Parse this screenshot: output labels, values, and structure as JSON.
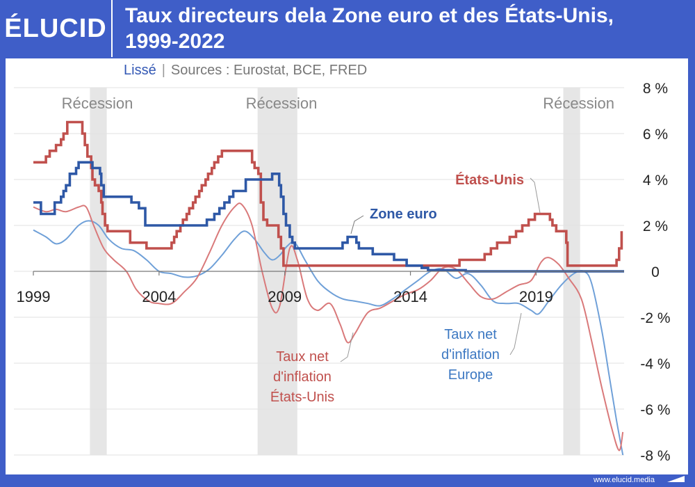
{
  "header": {
    "logo": "ÉLUCID",
    "title_line1": "Taux directeurs dela Zone euro et des États-Unis,",
    "title_line2": "1999-2022"
  },
  "subtitle": {
    "smoothed": "Lissé",
    "sources": "Sources : Eurostat, BCE, FRED"
  },
  "footer": {
    "url": "www.elucid.media"
  },
  "colors": {
    "frame": "#3f5ec8",
    "euro": "#2e58a6",
    "us": "#c0504d",
    "euro_net": "#6fa0d8",
    "us_net": "#d9797a",
    "recession": "#e6e6e6"
  },
  "chart_data": {
    "type": "line",
    "xlim": [
      1999,
      2022.5
    ],
    "ylim": [
      -8,
      8
    ],
    "x_ticks": [
      1999,
      2004,
      2009,
      2014,
      2019
    ],
    "y_ticks": [
      8,
      6,
      4,
      2,
      0,
      -2,
      -4,
      -6,
      -8
    ],
    "y_tick_labels": [
      "8 %",
      "6 %",
      "4 %",
      "2 %",
      "0",
      "-2 %",
      "-4 %",
      "-6 %",
      "-8 %"
    ],
    "recessions": [
      {
        "label": "Récession",
        "start": 2001.25,
        "end": 2001.92
      },
      {
        "label": "Récession",
        "start": 2007.92,
        "end": 2009.5
      },
      {
        "label": "Récession",
        "start": 2020.08,
        "end": 2020.75
      }
    ],
    "series": [
      {
        "name": "Zone euro",
        "label": "Zone euro",
        "style": "step",
        "points": [
          [
            1999.0,
            3.0
          ],
          [
            1999.3,
            2.5
          ],
          [
            1999.85,
            3.0
          ],
          [
            2000.1,
            3.25
          ],
          [
            2000.2,
            3.5
          ],
          [
            2000.3,
            3.75
          ],
          [
            2000.45,
            4.25
          ],
          [
            2000.7,
            4.5
          ],
          [
            2000.8,
            4.75
          ],
          [
            2001.35,
            4.5
          ],
          [
            2001.65,
            4.25
          ],
          [
            2001.7,
            3.75
          ],
          [
            2001.8,
            3.25
          ],
          [
            2002.9,
            3.0
          ],
          [
            2003.2,
            2.75
          ],
          [
            2003.45,
            2.0
          ],
          [
            2005.9,
            2.25
          ],
          [
            2006.2,
            2.5
          ],
          [
            2006.4,
            2.75
          ],
          [
            2006.6,
            3.0
          ],
          [
            2006.8,
            3.25
          ],
          [
            2006.95,
            3.5
          ],
          [
            2007.45,
            4.0
          ],
          [
            2008.5,
            4.25
          ],
          [
            2008.78,
            3.75
          ],
          [
            2008.85,
            3.25
          ],
          [
            2008.95,
            2.5
          ],
          [
            2009.05,
            2.0
          ],
          [
            2009.2,
            1.5
          ],
          [
            2009.3,
            1.25
          ],
          [
            2009.4,
            1.0
          ],
          [
            2011.3,
            1.25
          ],
          [
            2011.5,
            1.5
          ],
          [
            2011.85,
            1.25
          ],
          [
            2011.95,
            1.0
          ],
          [
            2012.5,
            0.75
          ],
          [
            2013.35,
            0.5
          ],
          [
            2013.85,
            0.25
          ],
          [
            2014.45,
            0.15
          ],
          [
            2014.7,
            0.05
          ],
          [
            2016.2,
            0.0
          ],
          [
            2022.5,
            0.0
          ]
        ]
      },
      {
        "name": "États-Unis",
        "label": "États-Unis",
        "style": "step",
        "points": [
          [
            1999.0,
            4.75
          ],
          [
            1999.5,
            5.0
          ],
          [
            1999.65,
            5.25
          ],
          [
            1999.9,
            5.5
          ],
          [
            2000.1,
            5.75
          ],
          [
            2000.2,
            6.0
          ],
          [
            2000.35,
            6.5
          ],
          [
            2000.95,
            6.0
          ],
          [
            2001.05,
            5.5
          ],
          [
            2001.15,
            5.0
          ],
          [
            2001.3,
            4.5
          ],
          [
            2001.35,
            4.0
          ],
          [
            2001.45,
            3.75
          ],
          [
            2001.6,
            3.5
          ],
          [
            2001.7,
            3.0
          ],
          [
            2001.75,
            2.5
          ],
          [
            2001.85,
            2.0
          ],
          [
            2001.95,
            1.75
          ],
          [
            2002.85,
            1.25
          ],
          [
            2003.5,
            1.0
          ],
          [
            2004.5,
            1.25
          ],
          [
            2004.6,
            1.5
          ],
          [
            2004.7,
            1.75
          ],
          [
            2004.85,
            2.0
          ],
          [
            2004.95,
            2.25
          ],
          [
            2005.1,
            2.5
          ],
          [
            2005.2,
            2.75
          ],
          [
            2005.35,
            3.0
          ],
          [
            2005.45,
            3.25
          ],
          [
            2005.6,
            3.5
          ],
          [
            2005.7,
            3.75
          ],
          [
            2005.85,
            4.0
          ],
          [
            2005.95,
            4.25
          ],
          [
            2006.1,
            4.5
          ],
          [
            2006.2,
            4.75
          ],
          [
            2006.35,
            5.0
          ],
          [
            2006.5,
            5.25
          ],
          [
            2007.7,
            4.75
          ],
          [
            2007.8,
            4.5
          ],
          [
            2007.95,
            4.25
          ],
          [
            2008.05,
            3.0
          ],
          [
            2008.15,
            2.25
          ],
          [
            2008.3,
            2.0
          ],
          [
            2008.75,
            1.5
          ],
          [
            2008.85,
            1.0
          ],
          [
            2008.95,
            0.25
          ],
          [
            2015.95,
            0.5
          ],
          [
            2016.95,
            0.75
          ],
          [
            2017.2,
            1.0
          ],
          [
            2017.45,
            1.25
          ],
          [
            2017.95,
            1.5
          ],
          [
            2018.2,
            1.75
          ],
          [
            2018.45,
            2.0
          ],
          [
            2018.7,
            2.25
          ],
          [
            2018.95,
            2.5
          ],
          [
            2019.55,
            2.25
          ],
          [
            2019.65,
            2.0
          ],
          [
            2019.8,
            1.75
          ],
          [
            2020.2,
            1.25
          ],
          [
            2020.25,
            0.25
          ],
          [
            2022.2,
            0.5
          ],
          [
            2022.3,
            1.0
          ],
          [
            2022.4,
            1.75
          ]
        ]
      },
      {
        "name": "Taux net d'inflation Europe",
        "label": [
          "Taux net",
          "d'inflation",
          "Europe"
        ],
        "style": "smooth",
        "points": [
          [
            1999.0,
            1.8
          ],
          [
            1999.5,
            1.5
          ],
          [
            1999.9,
            1.2
          ],
          [
            2000.3,
            1.4
          ],
          [
            2000.8,
            2.0
          ],
          [
            2001.2,
            2.2
          ],
          [
            2001.6,
            2.0
          ],
          [
            2002.0,
            1.4
          ],
          [
            2002.5,
            1.0
          ],
          [
            2003.0,
            0.9
          ],
          [
            2003.5,
            0.5
          ],
          [
            2004.0,
            0.0
          ],
          [
            2004.5,
            -0.1
          ],
          [
            2005.0,
            -0.25
          ],
          [
            2005.5,
            -0.2
          ],
          [
            2006.0,
            0.1
          ],
          [
            2006.5,
            0.7
          ],
          [
            2007.0,
            1.4
          ],
          [
            2007.4,
            1.75
          ],
          [
            2007.8,
            1.4
          ],
          [
            2008.2,
            0.8
          ],
          [
            2008.5,
            0.5
          ],
          [
            2008.8,
            0.7
          ],
          [
            2009.1,
            1.1
          ],
          [
            2009.4,
            1.25
          ],
          [
            2009.8,
            0.5
          ],
          [
            2010.3,
            -0.4
          ],
          [
            2010.8,
            -0.9
          ],
          [
            2011.3,
            -1.2
          ],
          [
            2011.8,
            -1.3
          ],
          [
            2012.3,
            -1.4
          ],
          [
            2012.8,
            -1.5
          ],
          [
            2013.3,
            -1.2
          ],
          [
            2013.8,
            -0.8
          ],
          [
            2014.3,
            -0.4
          ],
          [
            2014.8,
            0.0
          ],
          [
            2015.3,
            0.1
          ],
          [
            2015.8,
            -0.3
          ],
          [
            2016.3,
            -0.1
          ],
          [
            2016.8,
            -0.6
          ],
          [
            2017.3,
            -1.3
          ],
          [
            2017.8,
            -1.4
          ],
          [
            2018.3,
            -1.4
          ],
          [
            2018.8,
            -1.7
          ],
          [
            2019.1,
            -1.85
          ],
          [
            2019.5,
            -1.3
          ],
          [
            2020.0,
            -0.6
          ],
          [
            2020.5,
            -0.1
          ],
          [
            2020.9,
            0.0
          ],
          [
            2021.2,
            -0.5
          ],
          [
            2021.6,
            -2.5
          ],
          [
            2021.9,
            -4.5
          ],
          [
            2022.2,
            -6.5
          ],
          [
            2022.45,
            -8.0
          ]
        ]
      },
      {
        "name": "Taux net d'inflation États-Unis",
        "label": [
          "Taux net",
          "d'inflation",
          "États-Unis"
        ],
        "style": "smooth",
        "points": [
          [
            1999.0,
            2.8
          ],
          [
            1999.5,
            2.6
          ],
          [
            1999.9,
            2.7
          ],
          [
            2000.3,
            2.6
          ],
          [
            2000.8,
            2.8
          ],
          [
            2001.1,
            2.8
          ],
          [
            2001.4,
            2.0
          ],
          [
            2001.8,
            1.0
          ],
          [
            2002.2,
            0.5
          ],
          [
            2002.7,
            0.0
          ],
          [
            2003.1,
            -0.8
          ],
          [
            2003.6,
            -1.3
          ],
          [
            2004.0,
            -1.4
          ],
          [
            2004.5,
            -1.4
          ],
          [
            2005.0,
            -0.9
          ],
          [
            2005.5,
            -0.3
          ],
          [
            2006.0,
            0.8
          ],
          [
            2006.5,
            2.0
          ],
          [
            2007.0,
            2.8
          ],
          [
            2007.3,
            2.9
          ],
          [
            2007.7,
            2.0
          ],
          [
            2008.1,
            0.0
          ],
          [
            2008.5,
            -1.6
          ],
          [
            2008.8,
            -1.5
          ],
          [
            2009.2,
            1.0
          ],
          [
            2009.5,
            0.5
          ],
          [
            2009.9,
            -1.2
          ],
          [
            2010.3,
            -1.7
          ],
          [
            2010.8,
            -1.4
          ],
          [
            2011.2,
            -2.3
          ],
          [
            2011.5,
            -3.1
          ],
          [
            2011.8,
            -2.7
          ],
          [
            2012.3,
            -1.8
          ],
          [
            2012.8,
            -1.6
          ],
          [
            2013.3,
            -1.3
          ],
          [
            2013.8,
            -1.0
          ],
          [
            2014.3,
            -0.8
          ],
          [
            2014.8,
            -0.4
          ],
          [
            2015.3,
            0.15
          ],
          [
            2015.8,
            0.1
          ],
          [
            2016.3,
            -0.5
          ],
          [
            2016.8,
            -1.1
          ],
          [
            2017.3,
            -1.2
          ],
          [
            2017.8,
            -0.9
          ],
          [
            2018.3,
            -0.6
          ],
          [
            2018.8,
            -0.4
          ],
          [
            2019.2,
            0.4
          ],
          [
            2019.5,
            0.6
          ],
          [
            2019.9,
            0.3
          ],
          [
            2020.3,
            -0.3
          ],
          [
            2020.8,
            -1.2
          ],
          [
            2021.2,
            -3.0
          ],
          [
            2021.6,
            -5.0
          ],
          [
            2022.0,
            -6.8
          ],
          [
            2022.3,
            -7.8
          ],
          [
            2022.45,
            -7.0
          ]
        ]
      }
    ]
  }
}
